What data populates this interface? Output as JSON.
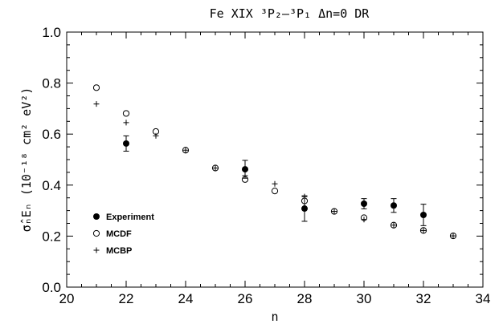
{
  "chart_data": {
    "type": "scatter",
    "title": "Fe XIX ³P₂–³P₁ Δn=0 DR",
    "xlabel": "n",
    "ylabel": "σ̂ₙEₙ (10⁻¹⁸ cm² eV²)",
    "xlim": [
      20,
      34
    ],
    "ylim": [
      0.0,
      1.0
    ],
    "x_ticks": [
      20,
      22,
      24,
      26,
      28,
      30,
      32,
      34
    ],
    "y_ticks": [
      0.0,
      0.2,
      0.4,
      0.6,
      0.8,
      1.0
    ],
    "x_tick_labels": [
      "20",
      "22",
      "24",
      "26",
      "28",
      "30",
      "32",
      "34"
    ],
    "y_tick_labels": [
      "0.0",
      "0.2",
      "0.4",
      "0.6",
      "0.8",
      "1.0"
    ],
    "grid": false,
    "legend_position": "lower-left",
    "series": [
      {
        "name": "Experiment",
        "marker": "filled-circle",
        "points": [
          {
            "x": 22,
            "y": 0.563,
            "err": 0.03
          },
          {
            "x": 26,
            "y": 0.462,
            "err": 0.035
          },
          {
            "x": 28,
            "y": 0.308,
            "err": 0.05
          },
          {
            "x": 30,
            "y": 0.327,
            "err": 0.02
          },
          {
            "x": 31,
            "y": 0.32,
            "err": 0.027
          },
          {
            "x": 32,
            "y": 0.283,
            "err": 0.042
          }
        ]
      },
      {
        "name": "MCDF",
        "marker": "open-circle",
        "points": [
          {
            "x": 21,
            "y": 0.782
          },
          {
            "x": 22,
            "y": 0.681
          },
          {
            "x": 23,
            "y": 0.61
          },
          {
            "x": 24,
            "y": 0.537
          },
          {
            "x": 25,
            "y": 0.467
          },
          {
            "x": 26,
            "y": 0.422
          },
          {
            "x": 27,
            "y": 0.377
          },
          {
            "x": 28,
            "y": 0.338
          },
          {
            "x": 29,
            "y": 0.297
          },
          {
            "x": 30,
            "y": 0.272
          },
          {
            "x": 31,
            "y": 0.243
          },
          {
            "x": 32,
            "y": 0.222
          },
          {
            "x": 33,
            "y": 0.201
          }
        ]
      },
      {
        "name": "MCBP",
        "marker": "plus",
        "points": [
          {
            "x": 21,
            "y": 0.718
          },
          {
            "x": 22,
            "y": 0.645
          },
          {
            "x": 23,
            "y": 0.593
          },
          {
            "x": 24,
            "y": 0.537
          },
          {
            "x": 25,
            "y": 0.467
          },
          {
            "x": 26,
            "y": 0.437
          },
          {
            "x": 27,
            "y": 0.405
          },
          {
            "x": 28,
            "y": 0.355
          },
          {
            "x": 29,
            "y": 0.297
          },
          {
            "x": 30,
            "y": 0.265
          },
          {
            "x": 31,
            "y": 0.243
          },
          {
            "x": 32,
            "y": 0.222
          },
          {
            "x": 33,
            "y": 0.201
          }
        ]
      }
    ]
  }
}
